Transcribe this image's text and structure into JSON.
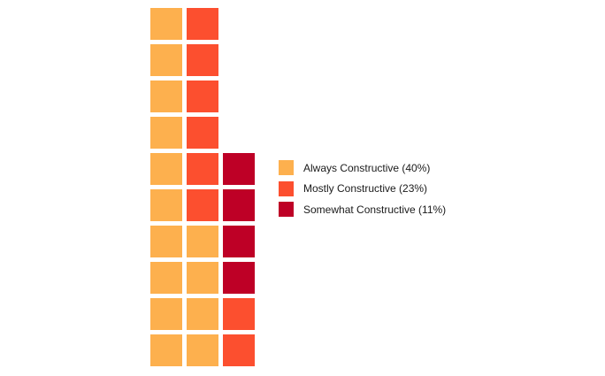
{
  "chart_data": {
    "type": "waffle",
    "title": "",
    "columns": 3,
    "rows": 10,
    "fill_order": "column-major, bottom-to-top",
    "series": [
      {
        "name": "Always Constructive (40%)",
        "units": 14,
        "color": "#FDB04E"
      },
      {
        "name": "Mostly Constructive (23%)",
        "units": 8,
        "color": "#FC4F2F"
      },
      {
        "name": "Somewhat Constructive (11%)",
        "units": 4,
        "color": "#BE0026"
      }
    ],
    "legend_position": "right"
  }
}
